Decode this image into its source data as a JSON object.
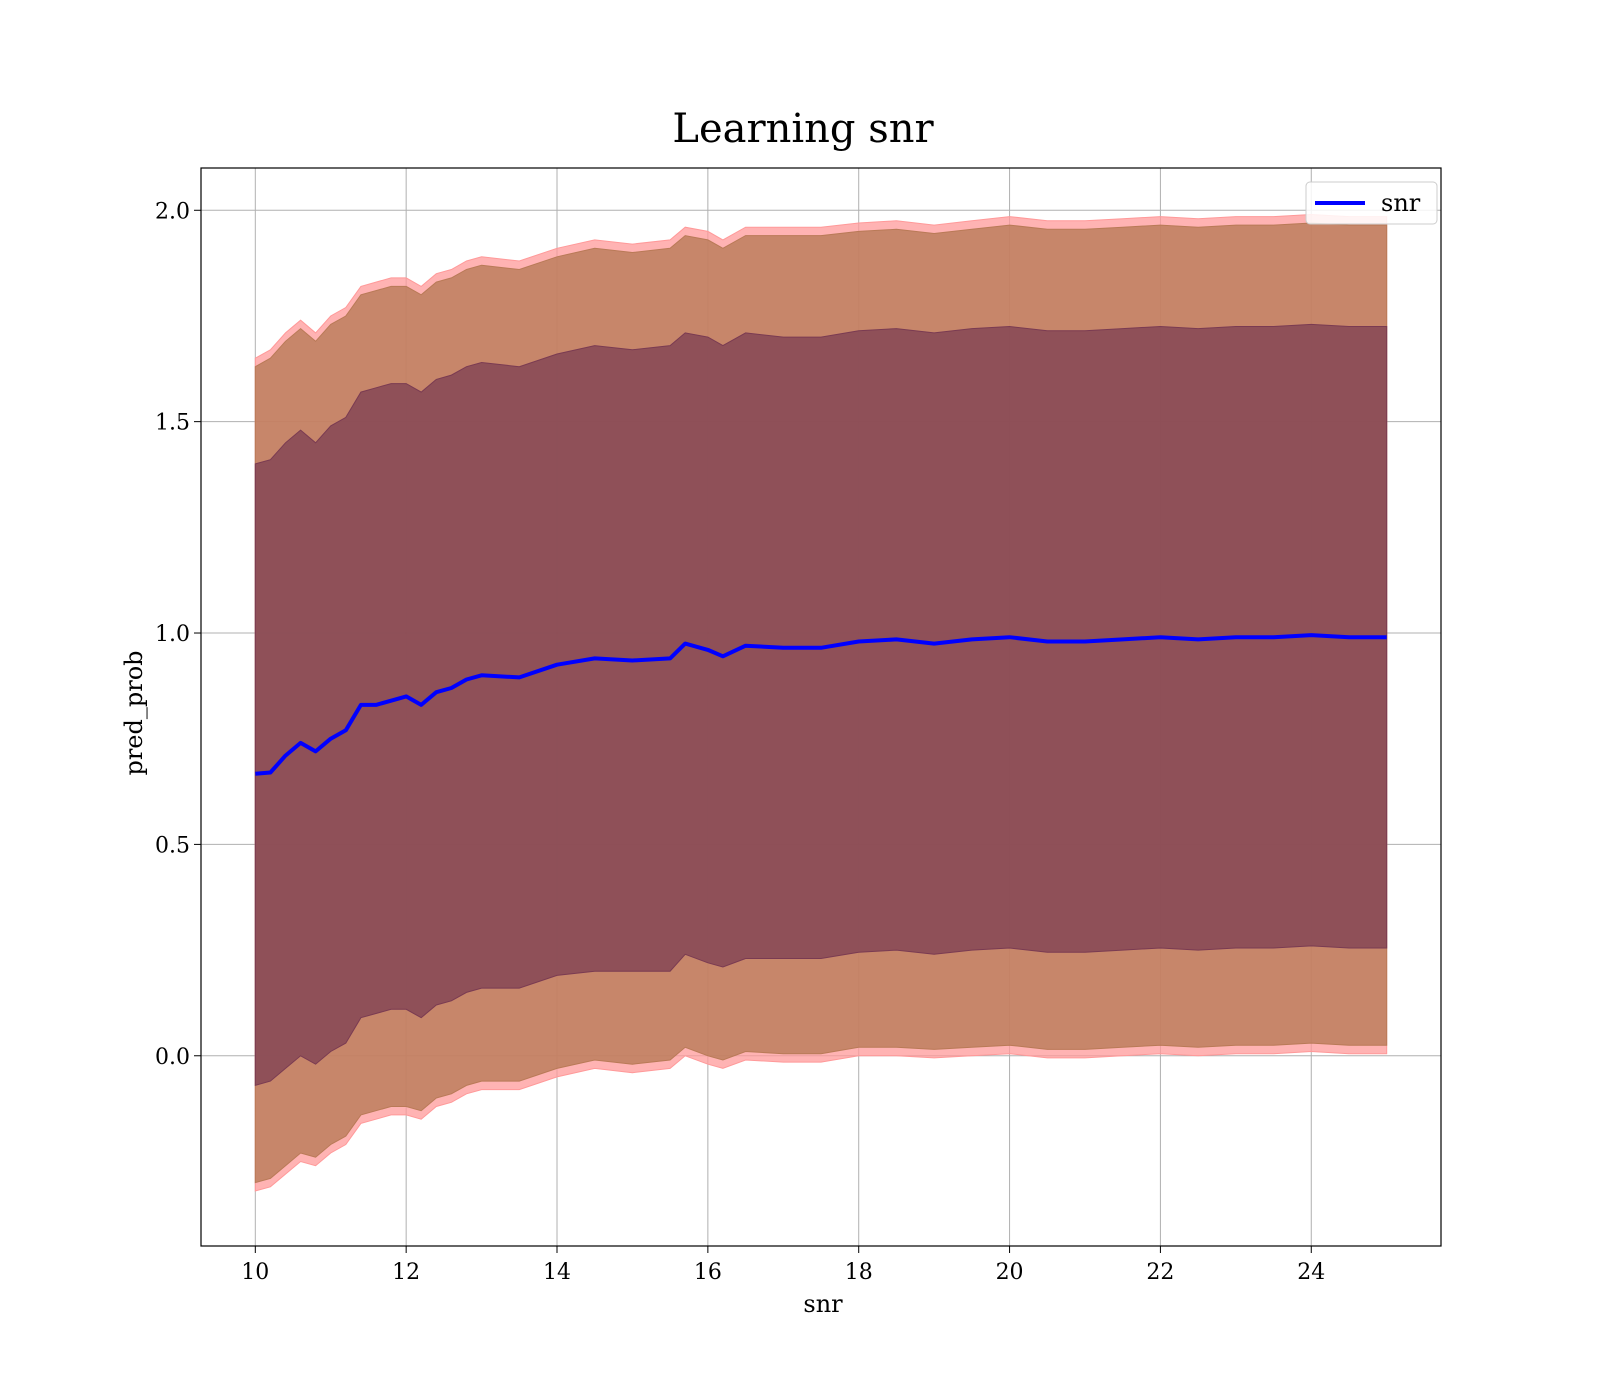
{
  "chart_data": {
    "type": "line",
    "title": "Learning snr",
    "xlabel": "snr",
    "ylabel": "pred_prob",
    "xlim": [
      9.28,
      25.72
    ],
    "ylim": [
      -0.45,
      2.1
    ],
    "xticks": [
      10,
      12,
      14,
      16,
      18,
      20,
      22,
      24
    ],
    "yticks": [
      0.0,
      0.5,
      1.0,
      1.5,
      2.0
    ],
    "xtick_labels": [
      "10",
      "12",
      "14",
      "16",
      "18",
      "20",
      "22",
      "24"
    ],
    "ytick_labels": [
      "0.0",
      "0.5",
      "1.0",
      "1.5",
      "2.0"
    ],
    "grid": true,
    "legend": {
      "position": "upper right",
      "entries": [
        "snr"
      ]
    },
    "colors": {
      "line": "#0000ff",
      "band_outer": "#ff9999",
      "band_middle": "#b97a57",
      "band_inner": "#7a3b52"
    },
    "x": [
      10.0,
      10.2,
      10.4,
      10.6,
      10.8,
      11.0,
      11.2,
      11.4,
      11.6,
      11.8,
      12.0,
      12.2,
      12.4,
      12.6,
      12.8,
      13.0,
      13.5,
      14.0,
      14.5,
      15.0,
      15.5,
      15.7,
      16.0,
      16.2,
      16.5,
      17.0,
      17.5,
      18.0,
      18.5,
      19.0,
      19.5,
      20.0,
      20.5,
      21.0,
      21.5,
      22.0,
      22.5,
      23.0,
      23.5,
      24.0,
      24.5,
      25.0
    ],
    "series": [
      {
        "name": "snr",
        "values": [
          0.667,
          0.67,
          0.71,
          0.74,
          0.72,
          0.75,
          0.77,
          0.83,
          0.83,
          0.84,
          0.85,
          0.83,
          0.86,
          0.87,
          0.89,
          0.9,
          0.895,
          0.925,
          0.94,
          0.935,
          0.94,
          0.975,
          0.96,
          0.945,
          0.97,
          0.965,
          0.965,
          0.98,
          0.985,
          0.975,
          0.985,
          0.99,
          0.98,
          0.98,
          0.985,
          0.99,
          0.985,
          0.99,
          0.99,
          0.995,
          0.99,
          0.99
        ]
      }
    ],
    "bands": [
      {
        "upper": [
          1.65,
          1.67,
          1.71,
          1.74,
          1.71,
          1.75,
          1.77,
          1.82,
          1.83,
          1.84,
          1.84,
          1.82,
          1.85,
          1.86,
          1.88,
          1.89,
          1.88,
          1.91,
          1.93,
          1.92,
          1.93,
          1.96,
          1.95,
          1.93,
          1.96,
          1.96,
          1.96,
          1.97,
          1.975,
          1.965,
          1.975,
          1.985,
          1.975,
          1.975,
          1.98,
          1.985,
          1.98,
          1.985,
          1.985,
          1.99,
          1.985,
          1.985
        ],
        "lower": [
          -0.32,
          -0.31,
          -0.28,
          -0.25,
          -0.26,
          -0.23,
          -0.21,
          -0.16,
          -0.15,
          -0.14,
          -0.14,
          -0.15,
          -0.12,
          -0.11,
          -0.09,
          -0.08,
          -0.08,
          -0.05,
          -0.03,
          -0.04,
          -0.03,
          0.0,
          -0.02,
          -0.03,
          -0.01,
          -0.015,
          -0.015,
          0.0,
          0.0,
          -0.005,
          0.0,
          0.005,
          -0.005,
          -0.005,
          0.0,
          0.005,
          0.0,
          0.005,
          0.005,
          0.01,
          0.005,
          0.005
        ]
      },
      {
        "upper": [
          1.63,
          1.65,
          1.69,
          1.72,
          1.69,
          1.73,
          1.75,
          1.8,
          1.81,
          1.82,
          1.82,
          1.8,
          1.83,
          1.84,
          1.86,
          1.87,
          1.86,
          1.89,
          1.91,
          1.9,
          1.91,
          1.94,
          1.93,
          1.91,
          1.94,
          1.94,
          1.94,
          1.95,
          1.955,
          1.945,
          1.955,
          1.965,
          1.955,
          1.955,
          1.96,
          1.965,
          1.96,
          1.965,
          1.965,
          1.97,
          1.965,
          1.965
        ],
        "lower": [
          -0.3,
          -0.29,
          -0.26,
          -0.23,
          -0.24,
          -0.21,
          -0.19,
          -0.14,
          -0.13,
          -0.12,
          -0.12,
          -0.13,
          -0.1,
          -0.09,
          -0.07,
          -0.06,
          -0.06,
          -0.03,
          -0.01,
          -0.02,
          -0.01,
          0.02,
          0.0,
          -0.01,
          0.01,
          0.005,
          0.005,
          0.02,
          0.02,
          0.015,
          0.02,
          0.025,
          0.015,
          0.015,
          0.02,
          0.025,
          0.02,
          0.025,
          0.025,
          0.03,
          0.025,
          0.025
        ]
      },
      {
        "upper": [
          1.4,
          1.41,
          1.45,
          1.48,
          1.45,
          1.49,
          1.51,
          1.57,
          1.58,
          1.59,
          1.59,
          1.57,
          1.6,
          1.61,
          1.63,
          1.64,
          1.63,
          1.66,
          1.68,
          1.67,
          1.68,
          1.71,
          1.7,
          1.68,
          1.71,
          1.7,
          1.7,
          1.715,
          1.72,
          1.71,
          1.72,
          1.725,
          1.715,
          1.715,
          1.72,
          1.725,
          1.72,
          1.725,
          1.725,
          1.73,
          1.725,
          1.725
        ],
        "lower": [
          -0.07,
          -0.06,
          -0.03,
          0.0,
          -0.02,
          0.01,
          0.03,
          0.09,
          0.1,
          0.11,
          0.11,
          0.09,
          0.12,
          0.13,
          0.15,
          0.16,
          0.16,
          0.19,
          0.2,
          0.2,
          0.2,
          0.24,
          0.22,
          0.21,
          0.23,
          0.23,
          0.23,
          0.245,
          0.25,
          0.24,
          0.25,
          0.255,
          0.245,
          0.245,
          0.25,
          0.255,
          0.25,
          0.255,
          0.255,
          0.26,
          0.255,
          0.255
        ]
      }
    ]
  }
}
